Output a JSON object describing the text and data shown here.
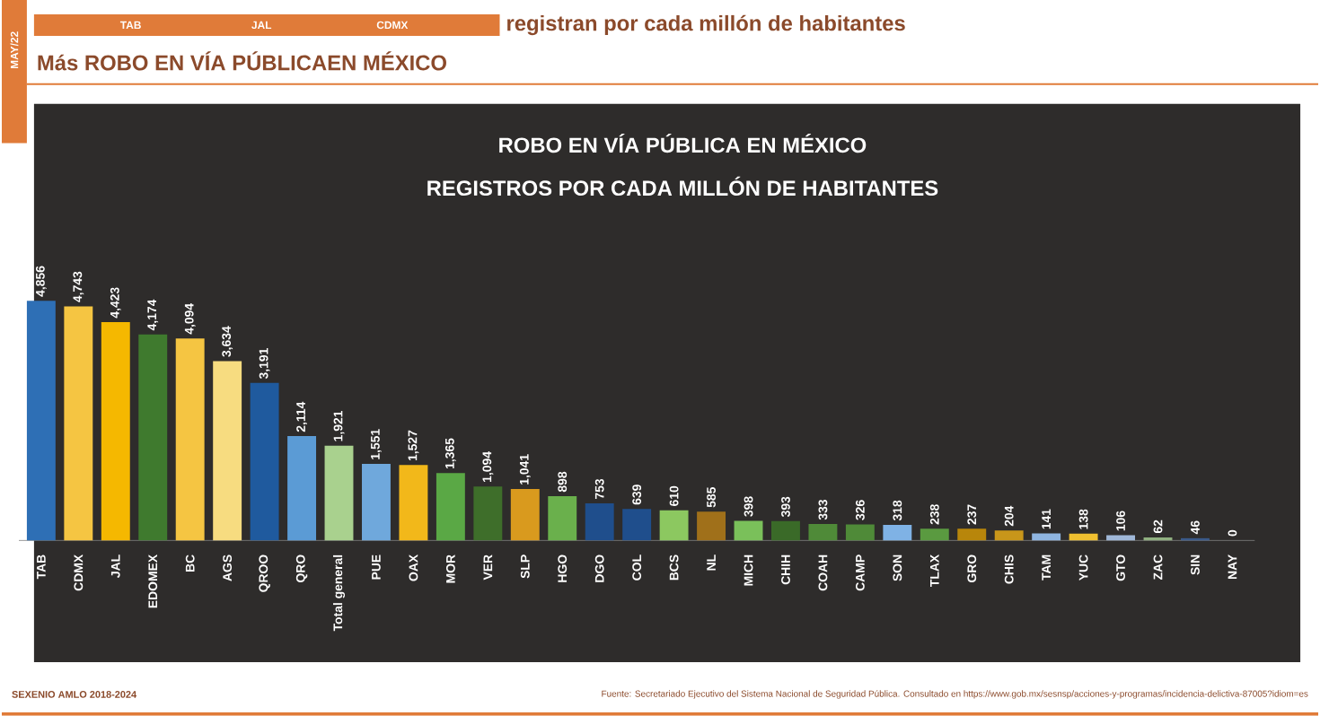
{
  "chart_data": {
    "type": "bar",
    "title": "ROBO EN VÍA PÚBLICA EN MÉXICO",
    "subtitle": "REGISTROS POR CADA MILLÓN DE HABITANTES",
    "categories": [
      "TAB",
      "CDMX",
      "JAL",
      "EDOMEX",
      "BC",
      "AGS",
      "QROO",
      "QRO",
      "Total general",
      "PUE",
      "OAX",
      "MOR",
      "VER",
      "SLP",
      "HGO",
      "DGO",
      "COL",
      "BCS",
      "NL",
      "MICH",
      "CHIH",
      "COAH",
      "CAMP",
      "SON",
      "TLAX",
      "GRO",
      "CHIS",
      "TAM",
      "YUC",
      "GTO",
      "ZAC",
      "SIN",
      "NAY"
    ],
    "values": [
      4856,
      4743,
      4423,
      4174,
      4094,
      3634,
      3191,
      2114,
      1921,
      1551,
      1527,
      1365,
      1094,
      1041,
      898,
      753,
      639,
      610,
      585,
      398,
      393,
      333,
      326,
      318,
      238,
      237,
      204,
      141,
      138,
      106,
      62,
      46,
      0
    ],
    "value_labels": [
      "4,856",
      "4,743",
      "4,423",
      "4,174",
      "4,094",
      "3,634",
      "3,191",
      "2,114",
      "1,921",
      "1,551",
      "1,527",
      "1,365",
      "1,094",
      "1,041",
      "898",
      "753",
      "639",
      "610",
      "585",
      "398",
      "393",
      "333",
      "326",
      "318",
      "238",
      "237",
      "204",
      "141",
      "138",
      "106",
      "62",
      "46",
      "0"
    ],
    "colors": [
      "#2e6fb5",
      "#f5c542",
      "#f5b800",
      "#3f7a2e",
      "#f5c542",
      "#f7dc80",
      "#1f5a9e",
      "#5b9bd5",
      "#a9d18e",
      "#6fa8dc",
      "#f2b81a",
      "#5aa845",
      "#3e6e2a",
      "#d99a1e",
      "#6ab04c",
      "#1f4e8c",
      "#1f4e8c",
      "#8cc860",
      "#a0701a",
      "#7ac05a",
      "#3a6a28",
      "#4f8a38",
      "#4f8a38",
      "#7fb2e5",
      "#5a9a40",
      "#b8860b",
      "#c8961a",
      "#8fb5e0",
      "#f0c030",
      "#a0b8d8",
      "#90b080",
      "#3a5a8a",
      "#555555"
    ],
    "annotations": [
      "MAY/22",
      "TAB",
      "JAL",
      "CDMX",
      "registran por cada millón de habitantes",
      "Más ROBO EN VÍA PÚBLICAEN MÉXICO",
      "SEXENIO AMLO 2018-2024",
      "Fuente: Secretariado Ejecutivo del Sistema Nacional de Seguridad Pública. Consultado en https://www.gob.mx/sesnsp/acciones-y-programas/incidencia-delictiva-87005?idiom=es"
    ]
  }
}
